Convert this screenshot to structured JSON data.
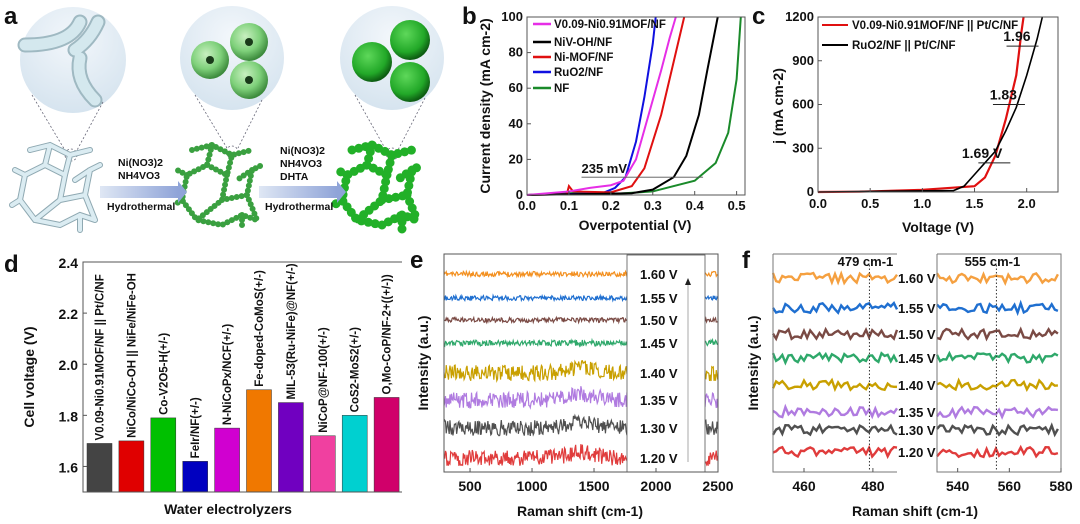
{
  "panel_a": {
    "letter": "a",
    "step1": {
      "reagent1": "Ni(NO3)2",
      "reagent2": "NH4VO3",
      "method": "Hydrothermal"
    },
    "step2": {
      "reagent1": "Ni(NO3)2",
      "reagent2": "NH4VO3",
      "reagent3": "DHTA",
      "method": "Hydrothermal"
    }
  },
  "chart_data": [
    {
      "id": "b",
      "letter": "b",
      "type": "line",
      "xlabel": "Overpotential (V)",
      "ylabel": "Current density (mA cm-2)",
      "xlim": [
        0,
        0.52
      ],
      "ylim": [
        0,
        100
      ],
      "xticks": [
        "0.0",
        "0.1",
        "0.2",
        "0.3",
        "0.4",
        "0.5"
      ],
      "yticks": [
        "0",
        "20",
        "40",
        "60",
        "80",
        "100"
      ],
      "legend_position": "top-left",
      "annotation": {
        "text": "235 mV",
        "y": 10,
        "x_from": 0.13,
        "x_to": 0.42
      },
      "series": [
        {
          "name": "V0.09-Ni0.91MOF/NF",
          "color": "#e62ee6",
          "points": [
            [
              0,
              0
            ],
            [
              0.1,
              2
            ],
            [
              0.15,
              4
            ],
            [
              0.2,
              5.5
            ],
            [
              0.23,
              8
            ],
            [
              0.26,
              20
            ],
            [
              0.29,
              45
            ],
            [
              0.32,
              70
            ],
            [
              0.34,
              88
            ],
            [
              0.355,
              100
            ]
          ]
        },
        {
          "name": "NiV-OH/NF",
          "color": "#000000",
          "points": [
            [
              0,
              0
            ],
            [
              0.25,
              1
            ],
            [
              0.3,
              3
            ],
            [
              0.35,
              10
            ],
            [
              0.38,
              22
            ],
            [
              0.41,
              45
            ],
            [
              0.43,
              70
            ],
            [
              0.455,
              100
            ]
          ]
        },
        {
          "name": "Ni-MOF/NF",
          "color": "#e01010",
          "points": [
            [
              0,
              0
            ],
            [
              0.095,
              0.5
            ],
            [
              0.1,
              5
            ],
            [
              0.11,
              2
            ],
            [
              0.2,
              1.5
            ],
            [
              0.25,
              5
            ],
            [
              0.28,
              15
            ],
            [
              0.32,
              45
            ],
            [
              0.35,
              75
            ],
            [
              0.375,
              100
            ]
          ]
        },
        {
          "name": "RuO2/NF",
          "color": "#1010e0",
          "points": [
            [
              0,
              0
            ],
            [
              0.18,
              1
            ],
            [
              0.21,
              4
            ],
            [
              0.235,
              10
            ],
            [
              0.26,
              30
            ],
            [
              0.28,
              55
            ],
            [
              0.3,
              85
            ],
            [
              0.307,
              100
            ]
          ]
        },
        {
          "name": "NF",
          "color": "#1a8a2a",
          "points": [
            [
              0,
              0
            ],
            [
              0.15,
              1.5
            ],
            [
              0.2,
              0.5
            ],
            [
              0.3,
              2
            ],
            [
              0.4,
              8
            ],
            [
              0.45,
              18
            ],
            [
              0.48,
              35
            ],
            [
              0.5,
              65
            ],
            [
              0.51,
              100
            ]
          ]
        }
      ]
    },
    {
      "id": "c",
      "letter": "c",
      "type": "line",
      "xlabel": "Voltage (V)",
      "ylabel": "j (mA cm-2)",
      "xlim": [
        0,
        2.3
      ],
      "ylim": [
        0,
        1200
      ],
      "xticks": [
        "0.0",
        "0.5",
        "1.0",
        "1.5",
        "2.0"
      ],
      "yticks": [
        "0",
        "300",
        "600",
        "900",
        "1200"
      ],
      "legend_position": "top-left",
      "annotations": [
        {
          "text": "1.69 V",
          "y": 200,
          "x": 1.69
        },
        {
          "text": "1.83",
          "y": 600,
          "x": 1.83
        },
        {
          "text": "1.96",
          "y": 1000,
          "x": 1.96
        }
      ],
      "series": [
        {
          "name": "V0.09-Ni0.91MOF/NF || Pt/C/NF",
          "color": "#e01010",
          "points": [
            [
              0,
              0
            ],
            [
              0.4,
              2
            ],
            [
              1.0,
              15
            ],
            [
              1.5,
              40
            ],
            [
              1.6,
              100
            ],
            [
              1.7,
              250
            ],
            [
              1.8,
              500
            ],
            [
              1.9,
              800
            ],
            [
              1.95,
              1100
            ],
            [
              1.97,
              1200
            ]
          ]
        },
        {
          "name": "RuO2/NF || Pt/C/NF",
          "color": "#000000",
          "points": [
            [
              0,
              0
            ],
            [
              1.3,
              10
            ],
            [
              1.4,
              40
            ],
            [
              1.5,
              120
            ],
            [
              1.6,
              200
            ],
            [
              1.7,
              280
            ],
            [
              1.8,
              420
            ],
            [
              1.9,
              580
            ],
            [
              2.0,
              800
            ],
            [
              2.1,
              1050
            ],
            [
              2.15,
              1200
            ]
          ]
        }
      ]
    },
    {
      "id": "d",
      "letter": "d",
      "type": "bar",
      "xlabel": "Water electrolyzers",
      "ylabel": "Cell voltage (V)",
      "ylim": [
        1.5,
        2.4
      ],
      "yticks": [
        "1.6",
        "1.8",
        "2.0",
        "2.2",
        "2.4"
      ],
      "categories": [
        "V0.09-Ni0.91MOF/NF || Pt/C/NF",
        "NiCo/NiCo-OH || NiFe/NiFe-OH",
        "Co-V2O5-H(+/-)",
        "FeIr/NF(+/-)",
        "N-NiCoPx/NCF(+/-)",
        "Fe-doped-CoMoS(+/-)",
        "MIL-53(Ru-NiFe)@NF(+/-)",
        "NiCoP@NF-100(+/-)",
        "CoS2-MoS2(+/-)",
        "O,Mo-CoP/NF-2+((+/-))"
      ],
      "values": [
        1.69,
        1.7,
        1.79,
        1.62,
        1.75,
        1.9,
        1.85,
        1.72,
        1.8,
        1.87
      ],
      "colors": [
        "#444444",
        "#e00000",
        "#00c000",
        "#0000c0",
        "#d000d0",
        "#f07800",
        "#7000c0",
        "#f040a0",
        "#00d0d0",
        "#d0006a"
      ]
    },
    {
      "id": "e",
      "letter": "e",
      "type": "line",
      "xlabel": "Raman shift (cm-1)",
      "ylabel": "Intensity (a.u.)",
      "xlim": [
        290,
        2500
      ],
      "xticks": [
        "500",
        "1000",
        "1500",
        "2000",
        "2500"
      ],
      "series": [
        {
          "name": "1.60 V",
          "color": "#f39020"
        },
        {
          "name": "1.55 V",
          "color": "#1f6fd0"
        },
        {
          "name": "1.50 V",
          "color": "#7a4a44"
        },
        {
          "name": "1.45 V",
          "color": "#2ea86a"
        },
        {
          "name": "1.40 V",
          "color": "#c9a000"
        },
        {
          "name": "1.35 V",
          "color": "#b07be0"
        },
        {
          "name": "1.30 V",
          "color": "#505050"
        },
        {
          "name": "1.20 V",
          "color": "#e03c3c"
        }
      ]
    },
    {
      "id": "f",
      "letter": "f",
      "type": "line",
      "xlabel": "Raman shift (cm-1)",
      "ylabel": "Intensity (a.u.)",
      "xlim_left": [
        451,
        487
      ],
      "xlim_right": [
        532,
        580
      ],
      "xticks_left": [
        "460",
        "480"
      ],
      "xticks_right": [
        "540",
        "560",
        "580"
      ],
      "markers": [
        {
          "x": 479,
          "label": "479 cm-1"
        },
        {
          "x": 555,
          "label": "555 cm-1"
        }
      ],
      "series": [
        {
          "name": "1.60 V",
          "color": "#f5a040"
        },
        {
          "name": "1.55 V",
          "color": "#1f6fd0"
        },
        {
          "name": "1.50 V",
          "color": "#7a4a44"
        },
        {
          "name": "1.45 V",
          "color": "#2ea86a"
        },
        {
          "name": "1.40 V",
          "color": "#c9a000"
        },
        {
          "name": "1.35 V",
          "color": "#b07be0"
        },
        {
          "name": "1.30 V",
          "color": "#505050"
        },
        {
          "name": "1.20 V",
          "color": "#e03c3c"
        }
      ]
    }
  ]
}
